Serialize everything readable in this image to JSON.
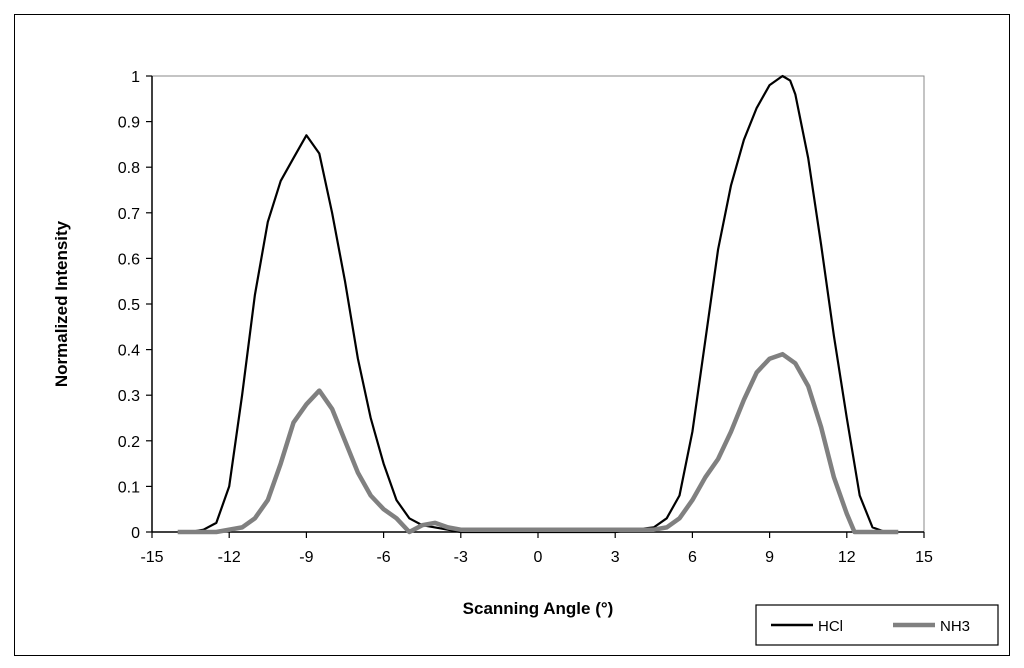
{
  "chart_data": {
    "type": "line",
    "title": "",
    "xlabel": "Scanning Angle (°)",
    "ylabel": "Normalized Intensity",
    "xlim": [
      -15,
      15
    ],
    "ylim": [
      0,
      1
    ],
    "xticks": [
      "-15",
      "-12",
      "-9",
      "-6",
      "-3",
      "0",
      "3",
      "6",
      "9",
      "12",
      "15"
    ],
    "yticks": [
      "0",
      "0.1",
      "0.2",
      "0.3",
      "0.4",
      "0.5",
      "0.6",
      "0.7",
      "0.8",
      "0.9",
      "1"
    ],
    "grid": false,
    "legend_position": "bottom-right",
    "series": [
      {
        "name": "HCl",
        "color": "#000000",
        "x": [
          -13.5,
          -13.0,
          -12.5,
          -12.0,
          -11.5,
          -11.0,
          -10.5,
          -10.0,
          -9.5,
          -9.0,
          -8.5,
          -8.0,
          -7.5,
          -7.0,
          -6.5,
          -6.0,
          -5.5,
          -5.0,
          -4.5,
          -4.0,
          -3.5,
          -3.0,
          0.0,
          3.0,
          4.5,
          5.0,
          5.5,
          6.0,
          6.5,
          7.0,
          7.5,
          8.0,
          8.5,
          9.0,
          9.5,
          9.8,
          10.0,
          10.5,
          11.0,
          11.5,
          12.0,
          12.5,
          13.0,
          13.5
        ],
        "y": [
          0.0,
          0.005,
          0.02,
          0.1,
          0.3,
          0.52,
          0.68,
          0.77,
          0.82,
          0.87,
          0.83,
          0.7,
          0.55,
          0.38,
          0.25,
          0.15,
          0.07,
          0.03,
          0.015,
          0.01,
          0.005,
          0.0,
          0.0,
          0.0,
          0.01,
          0.03,
          0.08,
          0.22,
          0.42,
          0.62,
          0.76,
          0.86,
          0.93,
          0.98,
          1.0,
          0.99,
          0.96,
          0.82,
          0.63,
          0.43,
          0.25,
          0.08,
          0.01,
          0.0
        ]
      },
      {
        "name": "NH3",
        "color": "#808080",
        "x": [
          -14.0,
          -12.5,
          -11.5,
          -11.0,
          -10.5,
          -10.0,
          -9.5,
          -9.0,
          -8.5,
          -8.0,
          -7.5,
          -7.0,
          -6.5,
          -6.0,
          -5.5,
          -5.0,
          -4.5,
          -4.0,
          -3.5,
          -3.0,
          0.0,
          3.0,
          4.5,
          5.0,
          5.5,
          6.0,
          6.5,
          7.0,
          7.5,
          8.0,
          8.5,
          9.0,
          9.5,
          10.0,
          10.5,
          11.0,
          11.5,
          12.0,
          12.3,
          14.0
        ],
        "y": [
          0.0,
          0.0,
          0.01,
          0.03,
          0.07,
          0.15,
          0.24,
          0.28,
          0.31,
          0.27,
          0.2,
          0.13,
          0.08,
          0.05,
          0.03,
          0.0,
          0.015,
          0.02,
          0.01,
          0.005,
          0.005,
          0.005,
          0.005,
          0.01,
          0.03,
          0.07,
          0.12,
          0.16,
          0.22,
          0.29,
          0.35,
          0.38,
          0.39,
          0.37,
          0.32,
          0.23,
          0.12,
          0.04,
          0.0,
          0.0
        ]
      }
    ]
  }
}
